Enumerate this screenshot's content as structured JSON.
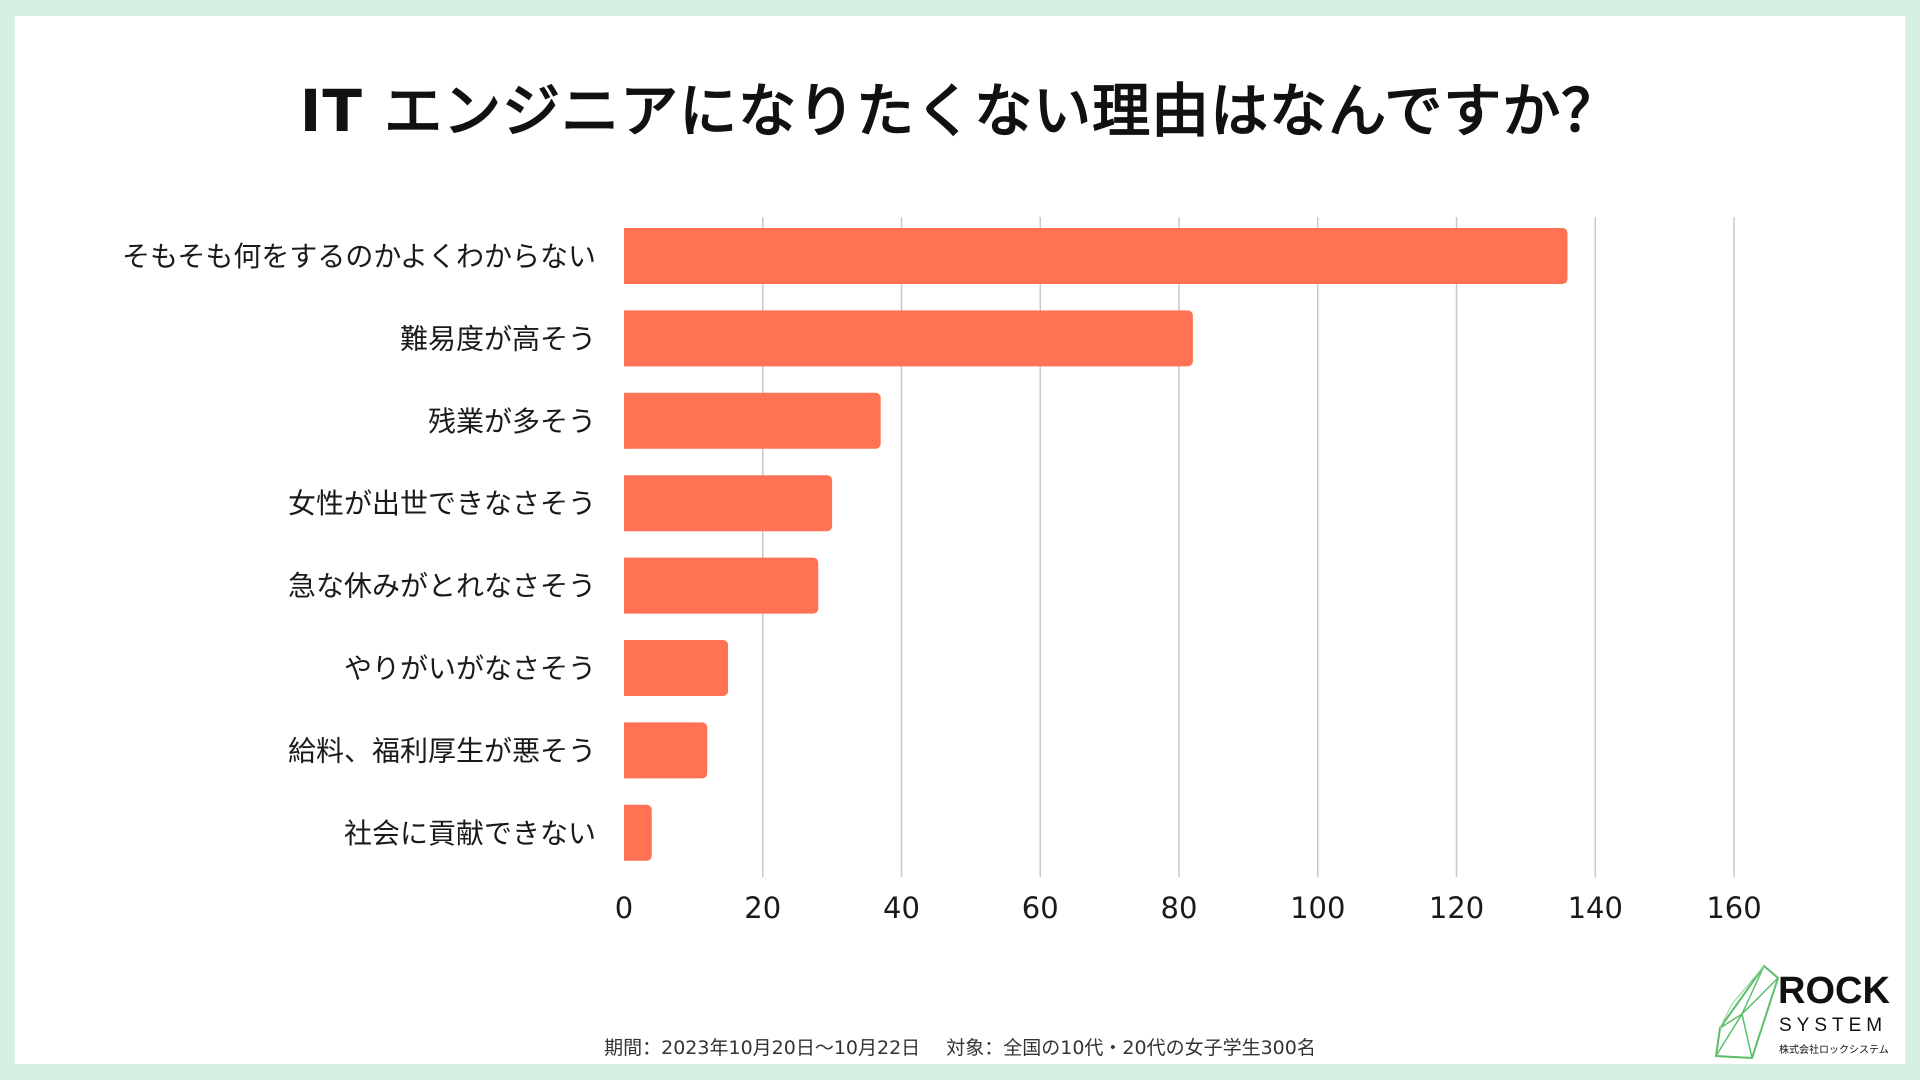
{
  "title": "IT エンジニアになりたくない理由はなんですか？",
  "chart_data": {
    "type": "bar",
    "orientation": "horizontal",
    "categories": [
      "そもそも何をするのかよくわからない",
      "難易度が高そう",
      "残業が多そう",
      "女性が出世できなさそう",
      "急な休みがとれなさそう",
      "やりがいがなさそう",
      "給料、福利厚生が悪そう",
      "社会に貢献できない"
    ],
    "values": [
      136,
      82,
      37,
      30,
      28,
      15,
      12,
      4
    ],
    "xlim": [
      0,
      160
    ],
    "ticks": [
      0,
      20,
      40,
      60,
      80,
      100,
      120,
      140,
      160
    ],
    "grid": true,
    "bar_color": "#ff7253",
    "grid_color": "#c8c8c8"
  },
  "footer": {
    "period": "期間：2023年10月20日〜10月22日",
    "target": "対象：全国の10代・20代の女子学生300名"
  },
  "logo": {
    "name": "ROCK",
    "sub": "SYSTEM",
    "company": "株式会社ロックシステム",
    "icon": "green-crystal-icon",
    "accent": "#5bbf6a"
  }
}
